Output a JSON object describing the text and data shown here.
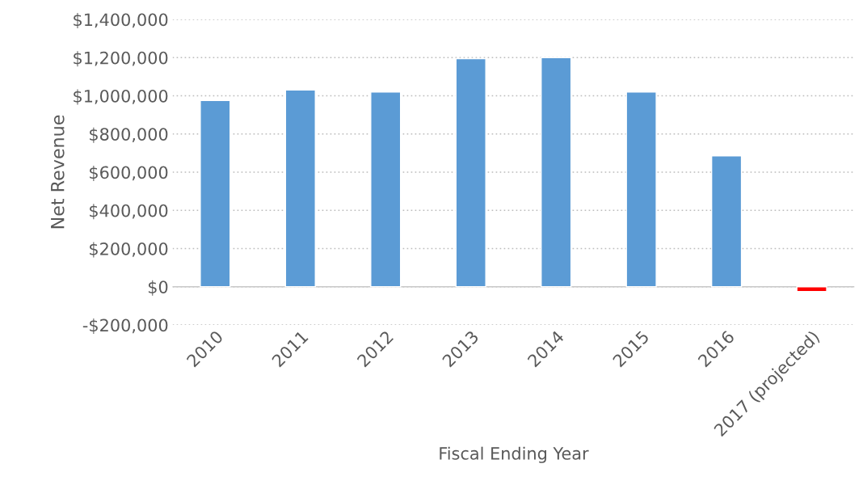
{
  "chart_data": {
    "type": "bar",
    "xlabel": "Fiscal Ending Year",
    "ylabel": "Net Revenue",
    "categories": [
      "2010",
      "2011",
      "2012",
      "2013",
      "2014",
      "2015",
      "2016",
      "2017 (projected)"
    ],
    "values": [
      975000,
      1030000,
      1020000,
      1195000,
      1200000,
      1020000,
      685000,
      -25000
    ],
    "colors": [
      "#5b9bd5",
      "#5b9bd5",
      "#5b9bd5",
      "#5b9bd5",
      "#5b9bd5",
      "#5b9bd5",
      "#5b9bd5",
      "#ff0000"
    ],
    "ylim": [
      -200000,
      1400000
    ],
    "yticks": [
      {
        "value": -200000,
        "label": "-$200,000"
      },
      {
        "value": 0,
        "label": "$0"
      },
      {
        "value": 200000,
        "label": "$200,000"
      },
      {
        "value": 400000,
        "label": "$400,000"
      },
      {
        "value": 600000,
        "label": "$600,000"
      },
      {
        "value": 800000,
        "label": "$800,000"
      },
      {
        "value": 1000000,
        "label": "$1,000,000"
      },
      {
        "value": 1200000,
        "label": "$1,200,000"
      },
      {
        "value": 1400000,
        "label": "$1,400,000"
      }
    ],
    "grid": "y"
  }
}
